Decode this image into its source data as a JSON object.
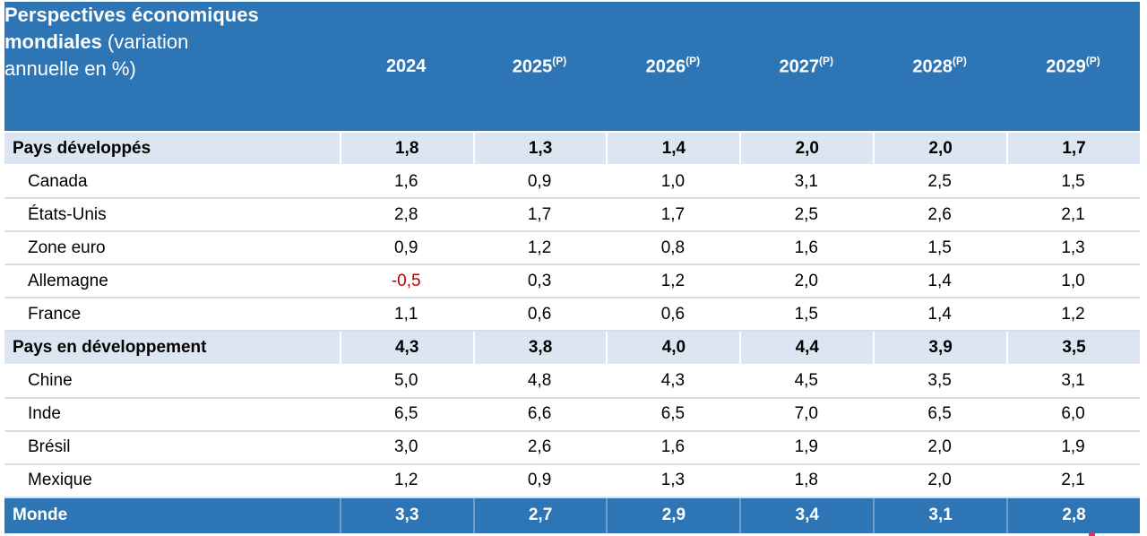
{
  "colors": {
    "header_blue": "#2e75b6",
    "band_light_blue": "#dce6f2",
    "total_blue": "#2e75b6",
    "negative_red": "#c00000",
    "row_separator": "#d3dfeb",
    "header_text": "#ffffff"
  },
  "header": {
    "title_line1_bold": "Perspectives économiques",
    "title_line2_bold": "mondiales",
    "title_line2_rest": " (variation",
    "title_line3_rest": "annuelle en %)",
    "columns": [
      {
        "year": "2024",
        "sup": ""
      },
      {
        "year": "2025",
        "sup": "(P)"
      },
      {
        "year": "2026",
        "sup": "(P)"
      },
      {
        "year": "2027",
        "sup": "(P)"
      },
      {
        "year": "2028",
        "sup": "(P)"
      },
      {
        "year": "2029",
        "sup": "(P)"
      }
    ]
  },
  "chart_data": {
    "type": "table",
    "title": "Perspectives économiques mondiales (variation annuelle en %)",
    "categories": [
      "2024",
      "2025(P)",
      "2026(P)",
      "2027(P)",
      "2028(P)",
      "2029(P)"
    ],
    "rows": [
      {
        "id": "pays-developpes",
        "label": "Pays développés",
        "type": "group",
        "values": [
          "1,8",
          "1,3",
          "1,4",
          "2,0",
          "2,0",
          "1,7"
        ]
      },
      {
        "id": "canada",
        "label": "Canada",
        "type": "country",
        "values": [
          "1,6",
          "0,9",
          "1,0",
          "3,1",
          "2,5",
          "1,5"
        ]
      },
      {
        "id": "etats-unis",
        "label": "États-Unis",
        "type": "country",
        "values": [
          "2,8",
          "1,7",
          "1,7",
          "2,5",
          "2,6",
          "2,1"
        ]
      },
      {
        "id": "zone-euro",
        "label": "Zone euro",
        "type": "country",
        "values": [
          "0,9",
          "1,2",
          "0,8",
          "1,6",
          "1,5",
          "1,3"
        ]
      },
      {
        "id": "allemagne",
        "label": "Allemagne",
        "type": "country",
        "values": [
          "-0,5",
          "0,3",
          "1,2",
          "2,0",
          "1,4",
          "1,0"
        ]
      },
      {
        "id": "france",
        "label": "France",
        "type": "country",
        "values": [
          "1,1",
          "0,6",
          "0,6",
          "1,5",
          "1,4",
          "1,2"
        ]
      },
      {
        "id": "pays-en-developpement",
        "label": "Pays en développement",
        "type": "group",
        "values": [
          "4,3",
          "3,8",
          "4,0",
          "4,4",
          "3,9",
          "3,5"
        ]
      },
      {
        "id": "chine",
        "label": "Chine",
        "type": "country",
        "values": [
          "5,0",
          "4,8",
          "4,3",
          "4,5",
          "3,5",
          "3,1"
        ]
      },
      {
        "id": "inde",
        "label": "Inde",
        "type": "country",
        "values": [
          "6,5",
          "6,6",
          "6,5",
          "7,0",
          "6,5",
          "6,0"
        ]
      },
      {
        "id": "bresil",
        "label": "Brésil",
        "type": "country",
        "values": [
          "3,0",
          "2,6",
          "1,6",
          "1,9",
          "2,0",
          "1,9"
        ]
      },
      {
        "id": "mexique",
        "label": "Mexique",
        "type": "country",
        "values": [
          "1,2",
          "0,9",
          "1,3",
          "1,8",
          "2,0",
          "2,1"
        ]
      },
      {
        "id": "monde",
        "label": "Monde",
        "type": "total",
        "values": [
          "3,3",
          "2,7",
          "2,9",
          "3,4",
          "3,1",
          "2,8"
        ]
      }
    ]
  }
}
